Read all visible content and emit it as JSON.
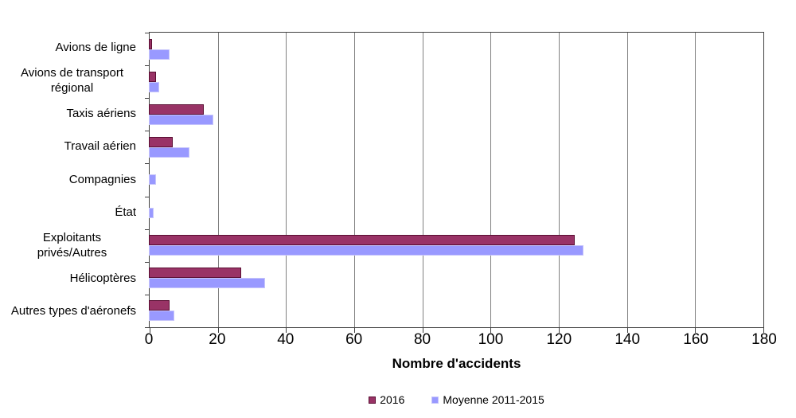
{
  "chart_data": {
    "type": "bar",
    "orientation": "horizontal",
    "categories": [
      "Avions de ligne",
      "Avions de transport régional",
      "Taxis aériens",
      "Travail aérien",
      "Compagnies",
      "État",
      "Exploitants privés/Autres",
      "Hélicoptères",
      "Autres types d'aéronefs"
    ],
    "series": [
      {
        "name": "2016",
        "color": "#993366",
        "border_color": "#5a0e33",
        "values": [
          1,
          2,
          16,
          7,
          0,
          0,
          125,
          27,
          6
        ]
      },
      {
        "name": "Moyenne 2011-2015",
        "color": "#9999ff",
        "border_color": "#c6c5fb",
        "values": [
          6,
          3,
          19,
          12,
          2,
          1.5,
          127.5,
          34,
          7.5
        ]
      }
    ],
    "xlabel": "Nombre d'accidents",
    "ylabel": "",
    "xlim": [
      0,
      180
    ],
    "xticks": [
      0,
      20,
      40,
      60,
      80,
      100,
      120,
      140,
      160,
      180
    ],
    "grid": true,
    "legend_position": "bottom-center",
    "colors": {
      "axis": "#404040",
      "gridline": "#808080",
      "text": "#000000",
      "background": "#ffffff"
    }
  }
}
